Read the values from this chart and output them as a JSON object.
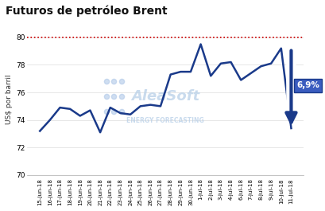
{
  "title": "Futuros de petróleo Brent",
  "ylabel": "US$ por barril",
  "ylim": [
    70,
    81
  ],
  "yticks": [
    70,
    72,
    74,
    76,
    78,
    80
  ],
  "reference_line": 80,
  "line_color": "#1a3a8a",
  "ref_line_color": "#cc0000",
  "background_color": "#ffffff",
  "arrow_label": "6,9%",
  "dates": [
    "15-jun-18",
    "16-jun-18",
    "17-jun-18",
    "18-jun-18",
    "19-jun-18",
    "20-jun-18",
    "21-jun-18",
    "22-jun-18",
    "23-jun-18",
    "24-jun-18",
    "25-jun-18",
    "26-jun-18",
    "27-jun-18",
    "28-jun-18",
    "29-jun-18",
    "30-jun-18",
    "1-jul-18",
    "2-jul-18",
    "3-jul-18",
    "4-jul-18",
    "6-jul-18",
    "7-jul-18",
    "8-jul-18",
    "9-jul-18",
    "10-jul-18",
    "11-jul-18"
  ],
  "values": [
    73.2,
    74.0,
    74.9,
    74.8,
    74.3,
    74.7,
    73.1,
    74.9,
    74.5,
    74.4,
    75.0,
    75.1,
    75.0,
    77.3,
    77.5,
    77.5,
    79.5,
    77.2,
    78.1,
    78.2,
    76.9,
    77.4,
    77.9,
    78.1,
    79.2,
    73.4
  ],
  "dot_color": "#b0c8e8",
  "watermark_color": "#b8cfe8"
}
